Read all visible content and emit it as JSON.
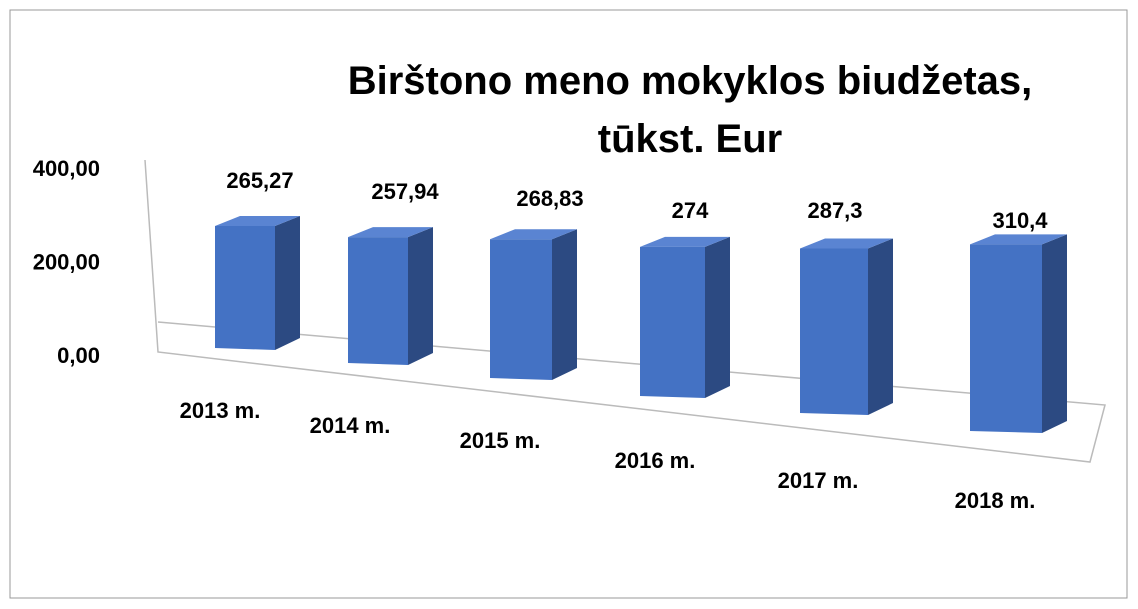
{
  "chart_data": {
    "type": "bar3d",
    "title": "Birštono meno mokyklos biudžetas, tūkst. Eur",
    "categories": [
      "2013 m.",
      "2014 m.",
      "2015 m.",
      "2016 m.",
      "2017 m.",
      "2018 m."
    ],
    "values": [
      265.27,
      257.94,
      268.83,
      274,
      287.3,
      310.4
    ],
    "value_labels": [
      "265,27",
      "257,94",
      "268,83",
      "274",
      "287,3",
      "310,4"
    ],
    "color": "#4472c4",
    "ylim": [
      0,
      400
    ],
    "yticks": [
      {
        "value": 0,
        "label": "0,00"
      },
      {
        "value": 200,
        "label": "200,00"
      },
      {
        "value": 400,
        "label": "400,00"
      }
    ]
  }
}
